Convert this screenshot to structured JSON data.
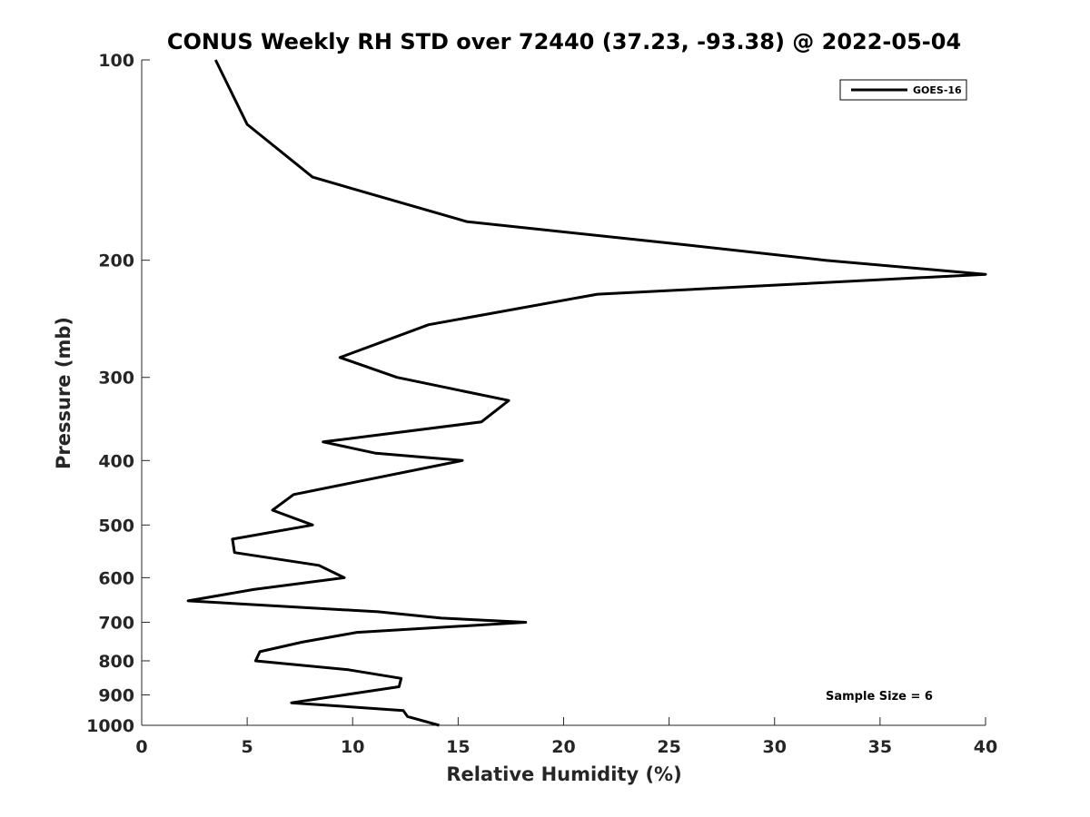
{
  "chart_data": {
    "type": "line",
    "title": "CONUS Weekly RH STD over 72440 (37.23, -93.38) @ 2022-05-04",
    "xlabel": "Relative Humidity (%)",
    "ylabel": "Pressure (mb)",
    "xlim": [
      0,
      40
    ],
    "ylim": [
      100,
      1000
    ],
    "yscale": "log",
    "yreversed": true,
    "xticks": [
      0,
      5,
      10,
      15,
      20,
      25,
      30,
      35,
      40
    ],
    "yticks": [
      100,
      200,
      300,
      400,
      500,
      600,
      700,
      800,
      900,
      1000
    ],
    "legend_position": "top-right",
    "grid": false,
    "annotation": "Sample Size = 6",
    "series": [
      {
        "name": "GOES-16",
        "color": "#000000",
        "x": [
          3.5,
          5.0,
          8.1,
          15.4,
          26.0,
          32.4,
          40.0,
          21.6,
          13.6,
          9.4,
          12.1,
          17.4,
          16.1,
          8.6,
          11.1,
          15.2,
          7.2,
          6.2,
          8.1,
          4.3,
          4.4,
          8.4,
          9.6,
          5.3,
          2.2,
          11.2,
          14.2,
          18.2,
          10.2,
          7.6,
          5.6,
          5.4,
          9.8,
          12.3,
          12.2,
          9.6,
          7.1,
          12.4,
          12.6,
          14.1
        ],
        "y": [
          100,
          125,
          150,
          175,
          190,
          200,
          210,
          225,
          250,
          280,
          300,
          325,
          350,
          375,
          390,
          400,
          450,
          475,
          500,
          525,
          550,
          575,
          600,
          625,
          650,
          675,
          690,
          700,
          725,
          750,
          775,
          800,
          825,
          850,
          875,
          900,
          925,
          950,
          970,
          1000
        ]
      }
    ]
  }
}
